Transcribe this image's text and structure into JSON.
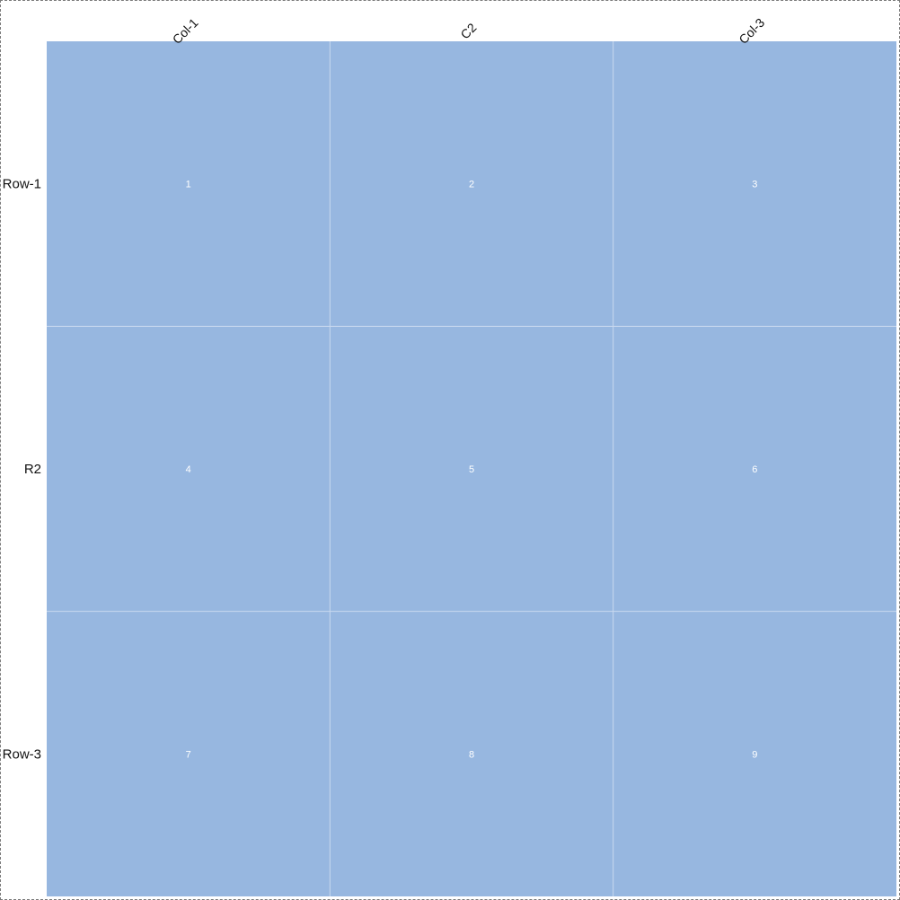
{
  "chart_data": {
    "type": "heatmap",
    "columns": [
      "Col-1",
      "C2",
      "Col-3"
    ],
    "rows": [
      "Row-1",
      "R2",
      "Row-3"
    ],
    "values": [
      [
        1,
        2,
        3
      ],
      [
        4,
        5,
        6
      ],
      [
        7,
        8,
        9
      ]
    ],
    "cell_color": "#97b7e0",
    "grid_line_color": "#c9d9ef",
    "value_text_color": "#ffffff",
    "label_color": "#111111",
    "legend": false,
    "colorbar": false
  }
}
